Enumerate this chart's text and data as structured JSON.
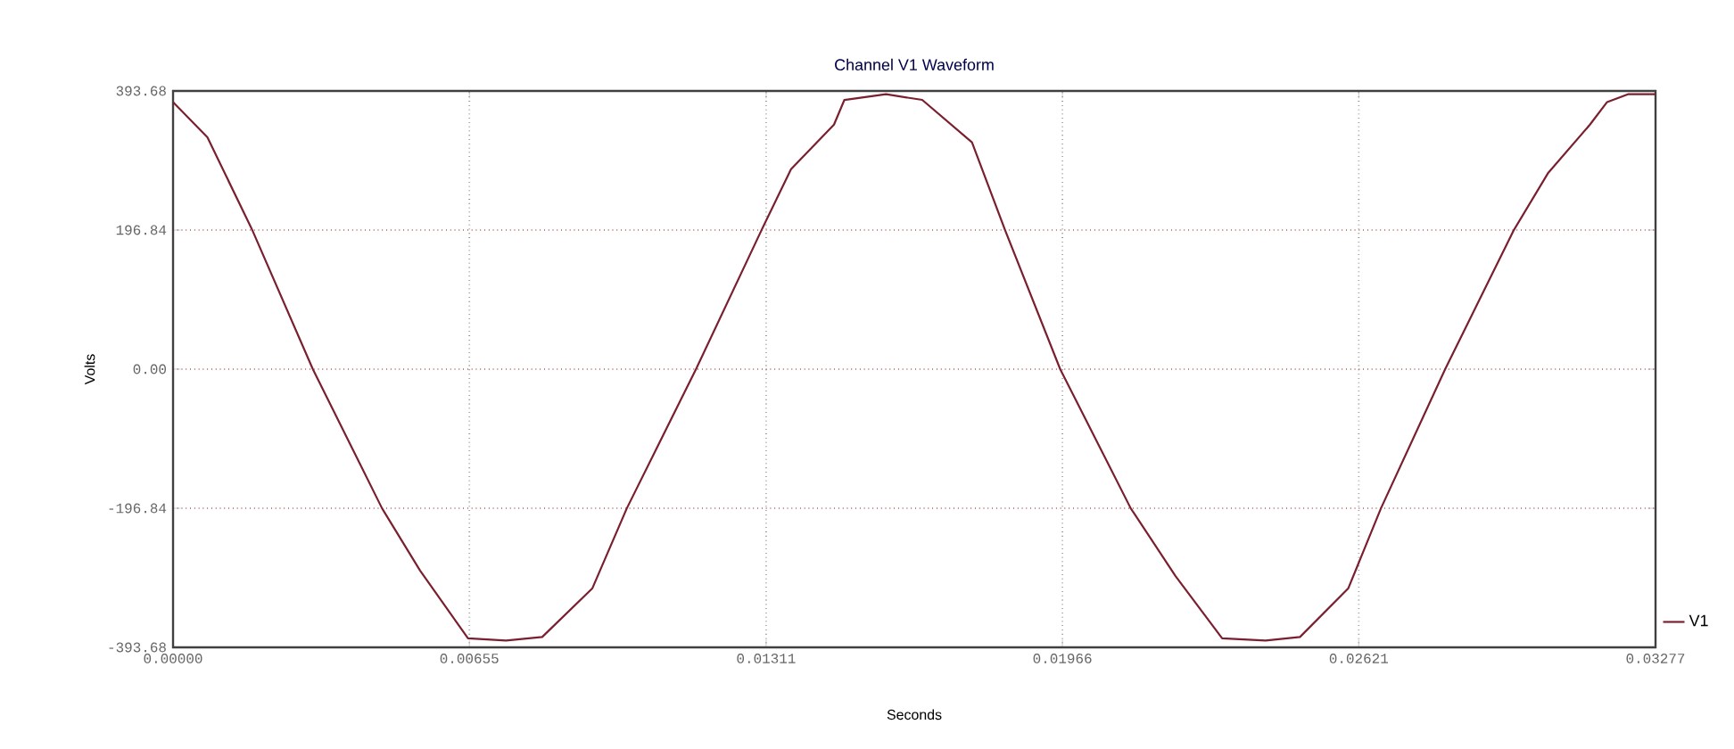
{
  "chart_data": {
    "type": "line",
    "title": "Channel V1 Waveform",
    "xlabel": "Seconds",
    "ylabel": "Volts",
    "xlim": [
      0,
      0.03277
    ],
    "ylim": [
      -393.68,
      393.68
    ],
    "xticks": [
      {
        "value": 0,
        "label": "0.00000"
      },
      {
        "value": 0.00655,
        "label": "0.00655"
      },
      {
        "value": 0.01311,
        "label": "0.01311"
      },
      {
        "value": 0.01966,
        "label": "0.01966"
      },
      {
        "value": 0.02621,
        "label": "0.02621"
      },
      {
        "value": 0.03277,
        "label": "0.03277"
      }
    ],
    "yticks": [
      {
        "value": -393.68,
        "label": "-393.68"
      },
      {
        "value": -196.84,
        "label": "-196.84"
      },
      {
        "value": 0,
        "label": "0.00"
      },
      {
        "value": 196.84,
        "label": "196.84"
      },
      {
        "value": 393.68,
        "label": "393.68"
      }
    ],
    "grid": true,
    "legend": "right",
    "marker": "none",
    "line_style": "solid",
    "series": [
      {
        "name": "V1",
        "color": "#7a1f2e",
        "x": [
          0,
          0.00076,
          0.00175,
          0.00309,
          0.00462,
          0.00546,
          0.00652,
          0.00736,
          0.00816,
          0.00927,
          0.01003,
          0.01156,
          0.01301,
          0.01366,
          0.01461,
          0.01484,
          0.01576,
          0.01656,
          0.01766,
          0.01839,
          0.01961,
          0.02117,
          0.02216,
          0.02319,
          0.02415,
          0.02491,
          0.02598,
          0.0267,
          0.02812,
          0.02964,
          0.0304,
          0.03132,
          0.0317,
          0.03216,
          0.03277
        ],
        "values": [
          378,
          328,
          197,
          0,
          -197,
          -285,
          -381,
          -384,
          -379,
          -310,
          -197,
          0,
          197,
          283,
          346,
          381,
          389,
          381,
          321,
          197,
          0,
          -197,
          -293,
          -381,
          -384,
          -379,
          -310,
          -197,
          0,
          197,
          278,
          346,
          378,
          389,
          389
        ]
      }
    ]
  }
}
